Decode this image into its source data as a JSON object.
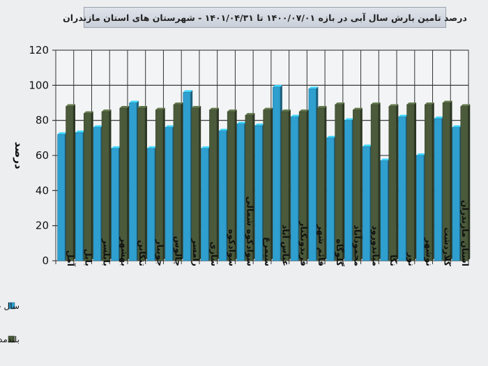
{
  "chart_data": {
    "type": "bar",
    "title": "درصد تامین بارش سال آبی در بازه ۱۴۰۰/۰۷/۰۱ تا ۱۴۰۱/۰۴/۳۱ - شهرستان های استان مازندران",
    "ylabel": "درصد",
    "xlabel": "",
    "ylim": [
      0,
      120
    ],
    "yticks": [
      0,
      20,
      40,
      60,
      80,
      100,
      120
    ],
    "grid": true,
    "legend_position": "left",
    "categories": [
      "آمل",
      "بابل",
      "بابلسر",
      "بهشهر",
      "تنکابن",
      "جویبار",
      "چالوس",
      "رامسر",
      "ساری",
      "سوادکوه",
      "سوادکوه شمالی",
      "سیمرغ",
      "عباس آباد",
      "فریدونکنار",
      "قائم شهر",
      "گلوگاه",
      "محمودآباد",
      "میاندورود",
      "نکا",
      "نور",
      "نوشهر",
      "کلاردشت",
      "استان مازندران"
    ],
    "series": [
      {
        "name": "سال جاری",
        "color": "#2e9fcf",
        "values": [
          72,
          73,
          76,
          64,
          90,
          64,
          76,
          96,
          64,
          74,
          78,
          77,
          99,
          82,
          98,
          70,
          80,
          65,
          57,
          82,
          60,
          81,
          76
        ]
      },
      {
        "name": "بلندمدت",
        "color": "#4a5a3a",
        "values": [
          88,
          84,
          85,
          87,
          87,
          86,
          89,
          87,
          86,
          85,
          83,
          86,
          85,
          85,
          87,
          89,
          86,
          89,
          88,
          89,
          89,
          90,
          88
        ]
      }
    ]
  }
}
